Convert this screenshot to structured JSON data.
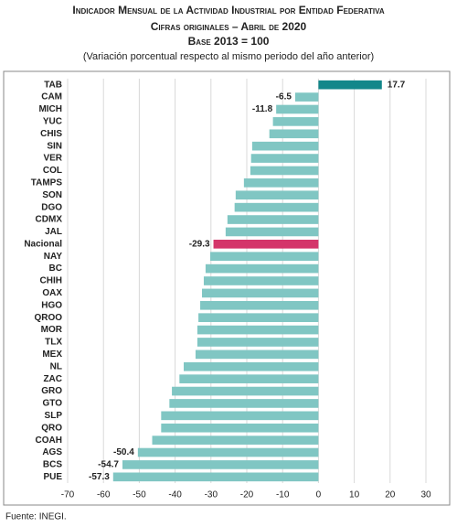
{
  "chart_data": {
    "type": "bar",
    "orientation": "horizontal",
    "title": "Indicador Mensual de la Actividad Industrial por Entidad Federativa",
    "subtitle": "Cifras originales – Abril de 2020",
    "subtitle2": "Base 2013 = 100",
    "subtitle3": "(Variación porcentual respecto al mismo periodo del año anterior)",
    "source": "Fuente: INEGI.",
    "categories": [
      "TAB",
      "CAM",
      "MICH",
      "YUC",
      "CHIS",
      "SIN",
      "VER",
      "COL",
      "TAMPS",
      "SON",
      "DGO",
      "CDMX",
      "JAL",
      "Nacional",
      "NAY",
      "BC",
      "CHIH",
      "OAX",
      "HGO",
      "QROO",
      "MOR",
      "TLX",
      "MEX",
      "NL",
      "ZAC",
      "GRO",
      "GTO",
      "SLP",
      "QRO",
      "COAH",
      "AGS",
      "BCS",
      "PUE"
    ],
    "values": [
      17.7,
      -6.5,
      -11.8,
      -12.7,
      -13.7,
      -18.5,
      -18.8,
      -19.0,
      -20.8,
      -23.1,
      -23.4,
      -25.4,
      -25.9,
      -29.3,
      -30.2,
      -31.5,
      -32.0,
      -32.5,
      -33.0,
      -33.5,
      -33.8,
      -33.8,
      -34.3,
      -37.6,
      -38.8,
      -40.9,
      -41.6,
      -43.9,
      -43.9,
      -46.4,
      -50.4,
      -54.7,
      -57.3
    ],
    "value_labels": [
      "17.7",
      "-6.5",
      "-11.8",
      null,
      null,
      null,
      null,
      null,
      null,
      null,
      null,
      null,
      null,
      "-29.3",
      null,
      null,
      null,
      null,
      null,
      null,
      null,
      null,
      null,
      null,
      null,
      null,
      null,
      null,
      null,
      null,
      "-50.4",
      "-54.7",
      "-57.3"
    ],
    "colors": [
      "#12878a",
      "#80c6c3",
      "#80c6c3",
      "#80c6c3",
      "#80c6c3",
      "#80c6c3",
      "#80c6c3",
      "#80c6c3",
      "#80c6c3",
      "#80c6c3",
      "#80c6c3",
      "#80c6c3",
      "#80c6c3",
      "#d4356a",
      "#80c6c3",
      "#80c6c3",
      "#80c6c3",
      "#80c6c3",
      "#80c6c3",
      "#80c6c3",
      "#80c6c3",
      "#80c6c3",
      "#80c6c3",
      "#80c6c3",
      "#80c6c3",
      "#80c6c3",
      "#80c6c3",
      "#80c6c3",
      "#80c6c3",
      "#80c6c3",
      "#80c6c3",
      "#80c6c3",
      "#80c6c3"
    ],
    "xlim": [
      -70,
      30
    ],
    "xticks": [
      -70,
      -60,
      -50,
      -40,
      -30,
      -20,
      -10,
      0,
      10,
      20,
      30
    ],
    "grid": true
  }
}
